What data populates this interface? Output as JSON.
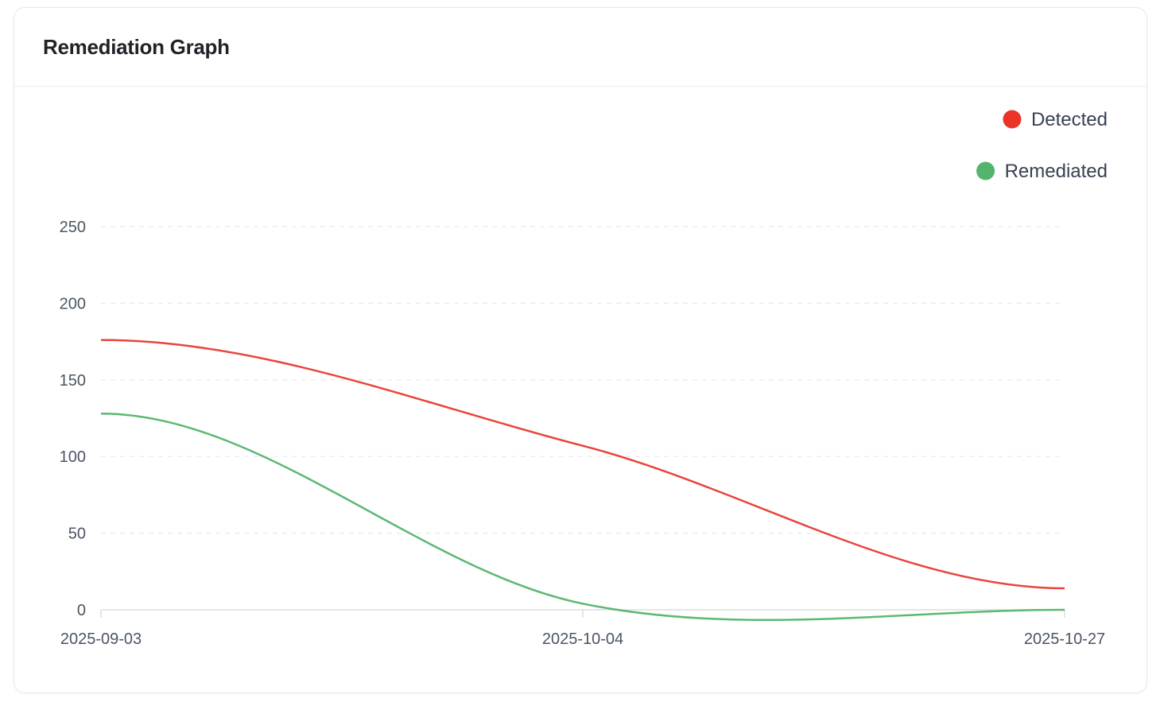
{
  "card": {
    "title": "Remediation Graph"
  },
  "chart_data": {
    "type": "line",
    "title": "",
    "xlabel": "",
    "ylabel": "",
    "categories": [
      "2025-09-03",
      "2025-10-04",
      "2025-10-27"
    ],
    "series": [
      {
        "name": "Detected",
        "values": [
          176,
          107,
          14
        ],
        "color": "#e8453c"
      },
      {
        "name": "Remediated",
        "values": [
          128,
          4,
          0
        ],
        "color": "#5cb874"
      }
    ],
    "ylim": [
      0,
      250
    ],
    "yticks": [
      0,
      50,
      100,
      150,
      200,
      250
    ],
    "grid": true,
    "legend_position": "top-right",
    "smooth": true
  }
}
